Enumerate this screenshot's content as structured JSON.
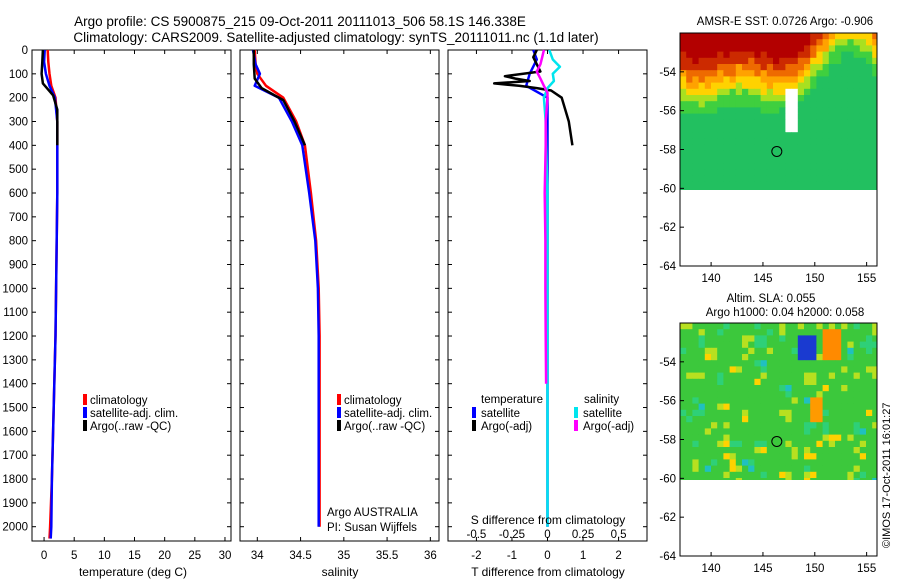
{
  "header": {
    "title_line1": "Argo profile: CS 5900875_215 09-Oct-2011 20111013_506 58.1S 146.338E",
    "title_line2": "Climatology: CARS2009. Satellite-adjusted climatology: synTS_20111011.nc (1.1d later)"
  },
  "colors": {
    "climatology": "#ff0000",
    "satellite": "#0000ff",
    "argo": "#000000",
    "sal_satellite": "#00e5ee",
    "sal_argo": "#ff00ff"
  },
  "chart_data": [
    {
      "type": "line",
      "name": "temperature",
      "xlabel": "temperature (deg C)",
      "ylabel": "",
      "xlim": [
        -2,
        31
      ],
      "ylim": [
        2060,
        0
      ],
      "xticks": [
        0,
        5,
        10,
        15,
        20,
        25,
        30
      ],
      "yticks": [
        0,
        100,
        200,
        300,
        400,
        500,
        600,
        700,
        800,
        900,
        1000,
        1100,
        1200,
        1300,
        1400,
        1500,
        1600,
        1700,
        1800,
        1900,
        2000
      ],
      "legend": [
        "climatology",
        "satellite-adj. clim.",
        "Argo(..raw -QC)"
      ],
      "legend_position": "center-right",
      "series": [
        {
          "name": "climatology",
          "color": "#ff0000",
          "points": [
            [
              0.6,
              0
            ],
            [
              0.7,
              50
            ],
            [
              0.9,
              100
            ],
            [
              1.2,
              150
            ],
            [
              1.9,
              200
            ],
            [
              2.2,
              300
            ],
            [
              2.2,
              400
            ],
            [
              2.2,
              500
            ],
            [
              2.2,
              600
            ],
            [
              2.1,
              800
            ],
            [
              2.0,
              1000
            ],
            [
              1.9,
              1200
            ],
            [
              1.7,
              1400
            ],
            [
              1.5,
              1600
            ],
            [
              1.3,
              1800
            ],
            [
              1.0,
              2000
            ],
            [
              0.9,
              2050
            ]
          ]
        },
        {
          "name": "satellite-adj. clim.",
          "color": "#0000ff",
          "points": [
            [
              0.1,
              0
            ],
            [
              0.0,
              50
            ],
            [
              0.3,
              100
            ],
            [
              0.9,
              150
            ],
            [
              1.8,
              200
            ],
            [
              2.2,
              300
            ],
            [
              2.2,
              400
            ],
            [
              2.2,
              500
            ],
            [
              2.2,
              600
            ],
            [
              2.1,
              800
            ],
            [
              2.0,
              1000
            ],
            [
              1.9,
              1200
            ],
            [
              1.7,
              1400
            ],
            [
              1.5,
              1600
            ],
            [
              1.3,
              1800
            ],
            [
              1.2,
              2000
            ],
            [
              1.1,
              2050
            ]
          ]
        },
        {
          "name": "Argo(..raw -QC)",
          "color": "#000000",
          "points": [
            [
              -0.2,
              0
            ],
            [
              -0.3,
              50
            ],
            [
              -0.4,
              100
            ],
            [
              -0.2,
              140
            ],
            [
              1.5,
              190
            ],
            [
              2.2,
              250
            ],
            [
              2.2,
              400
            ]
          ]
        }
      ]
    },
    {
      "type": "line",
      "name": "salinity",
      "xlabel": "salinity",
      "ylabel": "",
      "xlim": [
        33.8,
        36.1
      ],
      "ylim": [
        2060,
        0
      ],
      "xticks": [
        34,
        34.5,
        35,
        35.5,
        36
      ],
      "legend": [
        "climatology",
        "satellite-adj. clim.",
        "Argo(..raw -QC)"
      ],
      "legend_position": "center-right",
      "annotation": [
        "Argo AUSTRALIA",
        "PI: Susan Wijffels"
      ],
      "series": [
        {
          "name": "climatology",
          "color": "#ff0000",
          "points": [
            [
              33.97,
              0
            ],
            [
              33.98,
              60
            ],
            [
              34.0,
              100
            ],
            [
              34.1,
              150
            ],
            [
              34.3,
              200
            ],
            [
              34.45,
              300
            ],
            [
              34.55,
              400
            ],
            [
              34.62,
              600
            ],
            [
              34.68,
              800
            ],
            [
              34.71,
              1000
            ],
            [
              34.72,
              1200
            ],
            [
              34.72,
              1500
            ],
            [
              34.72,
              1800
            ],
            [
              34.72,
              2000
            ]
          ]
        },
        {
          "name": "satellite-adj. clim.",
          "color": "#0000ff",
          "points": [
            [
              33.95,
              0
            ],
            [
              33.98,
              60
            ],
            [
              34.03,
              100
            ],
            [
              33.97,
              150
            ],
            [
              34.25,
              200
            ],
            [
              34.4,
              300
            ],
            [
              34.52,
              400
            ],
            [
              34.6,
              600
            ],
            [
              34.67,
              800
            ],
            [
              34.7,
              1000
            ],
            [
              34.71,
              1200
            ],
            [
              34.71,
              1500
            ],
            [
              34.71,
              1800
            ],
            [
              34.71,
              2000
            ]
          ]
        },
        {
          "name": "Argo(..raw -QC)",
          "color": "#000000",
          "points": [
            [
              33.96,
              0
            ],
            [
              33.96,
              60
            ],
            [
              33.97,
              120
            ],
            [
              34.05,
              160
            ],
            [
              34.3,
              210
            ],
            [
              34.43,
              300
            ],
            [
              34.55,
              400
            ]
          ]
        }
      ]
    },
    {
      "type": "line",
      "name": "differences from climatology",
      "xlabel": "T difference from climatology",
      "x2label": "S difference from climatology",
      "ylabel": "",
      "xlim": [
        -2.8,
        2.8
      ],
      "ylim": [
        2060,
        0
      ],
      "xticks": [
        -2,
        -1,
        0,
        1,
        2
      ],
      "x2lim": [
        -0.7,
        0.7
      ],
      "x2ticks": [
        "-0.5",
        "-0.25",
        "0",
        "0.25",
        "0.5"
      ],
      "legend_groups": [
        {
          "heading": "temperature",
          "entries": [
            "satellite",
            "Argo(-adj)"
          ]
        },
        {
          "heading": "salinity",
          "entries": [
            "satellite",
            "Argo(-adj)"
          ]
        }
      ],
      "legend_position": "center",
      "series": [
        {
          "name": "temperature satellite",
          "color": "#0000ff",
          "points": [
            [
              -0.4,
              0
            ],
            [
              -0.3,
              40
            ],
            [
              -0.5,
              100
            ],
            [
              -0.6,
              150
            ],
            [
              0.0,
              200
            ],
            [
              0.0,
              400
            ],
            [
              0.0,
              1000
            ],
            [
              0.0,
              2000
            ]
          ]
        },
        {
          "name": "temperature Argo(-adj)",
          "color": "#000000",
          "points": [
            [
              -0.3,
              0
            ],
            [
              -0.4,
              30
            ],
            [
              -0.3,
              60
            ],
            [
              -0.2,
              90
            ],
            [
              -1.2,
              110
            ],
            [
              -0.9,
              120
            ],
            [
              -0.5,
              130
            ],
            [
              -1.5,
              140
            ],
            [
              -0.8,
              150
            ],
            [
              -0.3,
              160
            ],
            [
              0.1,
              170
            ],
            [
              0.4,
              200
            ],
            [
              0.6,
              300
            ],
            [
              0.7,
              400
            ]
          ]
        },
        {
          "name": "salinity satellite",
          "color": "#00e5ee",
          "points": [
            [
              0.05,
              0
            ],
            [
              0.15,
              40
            ],
            [
              0.35,
              70
            ],
            [
              0.15,
              100
            ],
            [
              0.18,
              130
            ],
            [
              0.0,
              160
            ],
            [
              -0.1,
              200
            ],
            [
              -0.05,
              300
            ],
            [
              -0.04,
              400
            ],
            [
              0.0,
              600
            ],
            [
              0.0,
              1000
            ],
            [
              0.0,
              2000
            ]
          ]
        },
        {
          "name": "salinity Argo(-adj)",
          "color": "#ff00ff",
          "points": [
            [
              -0.1,
              0
            ],
            [
              -0.15,
              30
            ],
            [
              -0.2,
              60
            ],
            [
              -0.3,
              90
            ],
            [
              -0.2,
              120
            ],
            [
              -0.1,
              150
            ],
            [
              0.0,
              180
            ],
            [
              0.0,
              200
            ],
            [
              -0.05,
              300
            ],
            [
              -0.05,
              400
            ],
            [
              -0.08,
              600
            ],
            [
              -0.06,
              800
            ],
            [
              -0.06,
              1000
            ],
            [
              -0.05,
              1200
            ],
            [
              -0.04,
              1400
            ]
          ]
        }
      ]
    },
    {
      "type": "heatmap",
      "name": "AMSR-E SST map",
      "title": "AMSR-E SST: 0.0726 Argo: -0.906",
      "xlim": [
        137,
        156
      ],
      "ylim": [
        -64,
        -52
      ],
      "xticks": [
        140,
        145,
        150,
        155
      ],
      "yticks": [
        -54,
        -56,
        -58,
        -60,
        -62,
        -64
      ],
      "float_position": [
        146.338,
        -58.1
      ]
    },
    {
      "type": "heatmap",
      "name": "Altimeter SLA map",
      "title_line1": "Altim. SLA: 0.055",
      "title_line2": "Argo h1000: 0.04 h2000: 0.058",
      "xlim": [
        137,
        156
      ],
      "ylim": [
        -64,
        -52
      ],
      "xticks": [
        140,
        145,
        150,
        155
      ],
      "yticks": [
        -54,
        -56,
        -58,
        -60,
        -62,
        -64
      ],
      "float_position": [
        146.338,
        -58.1
      ]
    }
  ],
  "footer": {
    "stamp": "©IMOS 17-Oct-2011 16:01:27"
  }
}
